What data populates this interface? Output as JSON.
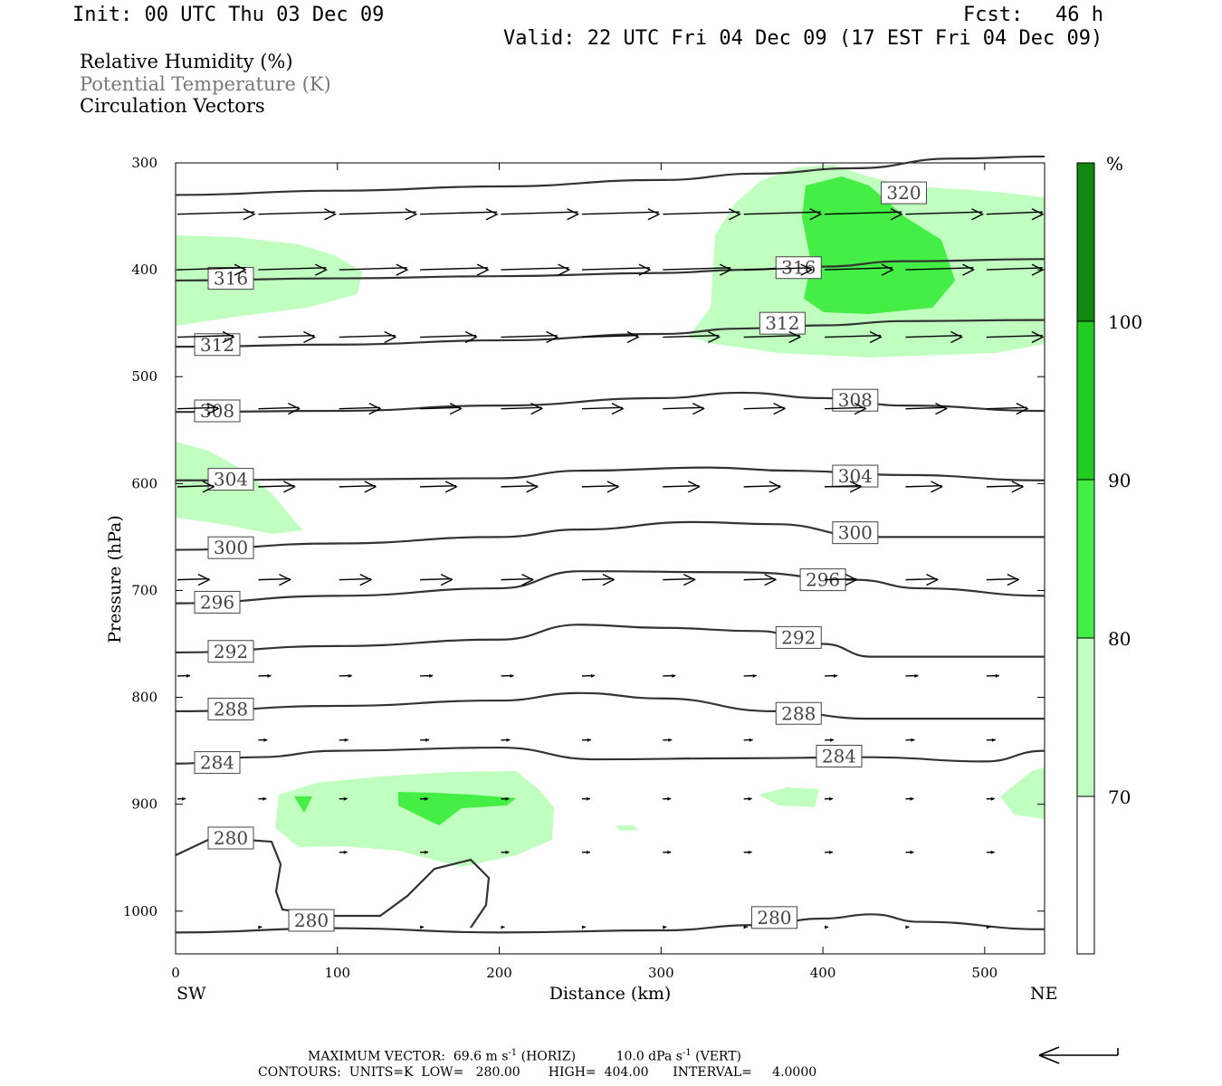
{
  "header": {
    "init": "Init: 00 UTC Thu 03 Dec 09",
    "fcst_label": "Fcst:",
    "fcst_value": "46 h",
    "valid": "Valid: 22 UTC Fri 04 Dec 09 (17 EST Fri 04 Dec 09)"
  },
  "legend": {
    "rh": "Relative Humidity (%)",
    "theta": "Potential Temperature (K)",
    "vectors": "Circulation Vectors"
  },
  "colors": {
    "rh_70_80": "#c0ffc0",
    "rh_80_90": "#44ee44",
    "rh_90_100": "#22cc22",
    "rh_100": "#118811",
    "contour": "#333333",
    "vector": "#000000"
  },
  "footer": {
    "max_vector": "MAXIMUM VECTOR:  69.6 m s",
    "max_vector_horiz": "(HORIZ)",
    "max_vector_vert": "10.0 dPa s",
    "max_vector_vert_tag": "(VERT)",
    "exponent": "-1",
    "contours": "CONTOURS:  UNITS=K  LOW=   280.00       HIGH=  404.00      INTERVAL=     4.0000"
  },
  "chart_data": {
    "type": "contour-cross-section",
    "xlabel": "Distance (km)",
    "ylabel": "Pressure (hPa)",
    "x_endpoints": [
      "SW",
      "NE"
    ],
    "xlim": [
      0,
      537
    ],
    "ylim": [
      1040,
      300
    ],
    "xticks": [
      0,
      100,
      200,
      300,
      400,
      500
    ],
    "yticks": [
      300,
      400,
      500,
      600,
      700,
      800,
      900,
      1000
    ],
    "colorbar": {
      "unit": "%",
      "levels": [
        70,
        80,
        90,
        100
      ],
      "colors": [
        "#ffffff",
        "#c0ffc0",
        "#44ee44",
        "#22cc22",
        "#118811"
      ]
    },
    "theta_contours": [
      {
        "value": 320,
        "label_at": [
          450,
          328
        ],
        "points": [
          [
            0,
            330
          ],
          [
            100,
            326
          ],
          [
            200,
            322
          ],
          [
            300,
            316
          ],
          [
            360,
            310
          ],
          [
            420,
            305
          ],
          [
            480,
            296
          ],
          [
            537,
            294
          ]
        ]
      },
      {
        "value": 316,
        "label_at": [
          385,
          398
        ],
        "points": [
          [
            0,
            410
          ],
          [
            100,
            408
          ],
          [
            200,
            406
          ],
          [
            300,
            403
          ],
          [
            350,
            400
          ],
          [
            400,
            397
          ],
          [
            450,
            392
          ],
          [
            537,
            390
          ]
        ]
      },
      {
        "value": 312,
        "label_at": [
          375,
          450
        ],
        "points": [
          [
            0,
            472
          ],
          [
            100,
            470
          ],
          [
            200,
            466
          ],
          [
            300,
            460
          ],
          [
            350,
            455
          ],
          [
            400,
            452
          ],
          [
            450,
            448
          ],
          [
            537,
            447
          ]
        ]
      },
      {
        "value": 308,
        "label_at": [
          420,
          522
        ],
        "points": [
          [
            0,
            533
          ],
          [
            100,
            532
          ],
          [
            200,
            527
          ],
          [
            300,
            520
          ],
          [
            350,
            515
          ],
          [
            400,
            520
          ],
          [
            450,
            527
          ],
          [
            537,
            532
          ]
        ]
      },
      {
        "value": 304,
        "label_at": [
          420,
          593
        ],
        "points": [
          [
            0,
            597
          ],
          [
            100,
            596
          ],
          [
            200,
            595
          ],
          [
            250,
            588
          ],
          [
            330,
            585
          ],
          [
            380,
            588
          ],
          [
            450,
            592
          ],
          [
            537,
            597
          ]
        ]
      },
      {
        "value": 300,
        "label_at": [
          420,
          646
        ],
        "points": [
          [
            0,
            662
          ],
          [
            100,
            656
          ],
          [
            200,
            650
          ],
          [
            250,
            643
          ],
          [
            320,
            636
          ],
          [
            370,
            638
          ],
          [
            430,
            650
          ],
          [
            537,
            650
          ]
        ]
      },
      {
        "value": 296,
        "label_at": [
          400,
          690
        ],
        "points": [
          [
            0,
            712
          ],
          [
            100,
            705
          ],
          [
            200,
            698
          ],
          [
            250,
            682
          ],
          [
            350,
            683
          ],
          [
            420,
            690
          ],
          [
            460,
            698
          ],
          [
            537,
            705
          ]
        ]
      },
      {
        "value": 292,
        "label_at": [
          385,
          744
        ],
        "points": [
          [
            0,
            758
          ],
          [
            100,
            752
          ],
          [
            200,
            746
          ],
          [
            250,
            732
          ],
          [
            300,
            735
          ],
          [
            360,
            738
          ],
          [
            400,
            750
          ],
          [
            430,
            762
          ],
          [
            537,
            762
          ]
        ]
      },
      {
        "value": 288,
        "label_at": [
          385,
          815
        ],
        "points": [
          [
            0,
            813
          ],
          [
            100,
            808
          ],
          [
            200,
            803
          ],
          [
            250,
            796
          ],
          [
            300,
            801
          ],
          [
            370,
            813
          ],
          [
            430,
            820
          ],
          [
            537,
            820
          ]
        ]
      },
      {
        "value": 284,
        "label_at": [
          410,
          855
        ],
        "points": [
          [
            0,
            862
          ],
          [
            50,
            856
          ],
          [
            100,
            850
          ],
          [
            200,
            847
          ],
          [
            260,
            858
          ],
          [
            350,
            857
          ],
          [
            430,
            856
          ],
          [
            500,
            860
          ],
          [
            537,
            850
          ]
        ]
      },
      {
        "value": 280,
        "label_at": [
          370,
          1006
        ],
        "points": [
          [
            0,
            1020
          ],
          [
            100,
            1016
          ],
          [
            200,
            1020
          ],
          [
            300,
            1018
          ],
          [
            360,
            1013
          ],
          [
            400,
            1007
          ],
          [
            430,
            1003
          ],
          [
            460,
            1010
          ],
          [
            537,
            1017
          ]
        ]
      }
    ]
  }
}
